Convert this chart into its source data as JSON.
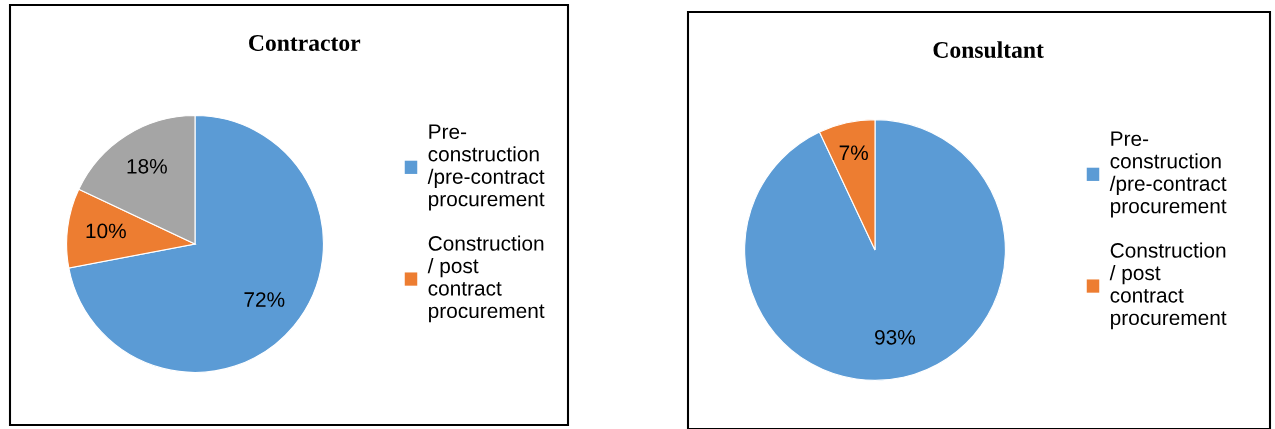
{
  "chart_data": [
    {
      "type": "pie",
      "title": "Contractor",
      "categories": [
        "Pre-construction /pre-contract procurement",
        "Construction / post contract procurement",
        null
      ],
      "values": [
        72,
        10,
        18
      ],
      "colors": [
        "#5b9bd5",
        "#ed7d31",
        "#a5a5a5"
      ],
      "value_labels": [
        "72%",
        "10%",
        "18%"
      ],
      "legend": "right"
    },
    {
      "type": "pie",
      "title": "Consultant",
      "categories": [
        "Pre-construction /pre-contract procurement",
        "Construction / post contract procurement"
      ],
      "values": [
        93,
        7
      ],
      "colors": [
        "#5b9bd5",
        "#ed7d31"
      ],
      "value_labels": [
        "93%",
        "7%"
      ],
      "legend": "right"
    }
  ]
}
